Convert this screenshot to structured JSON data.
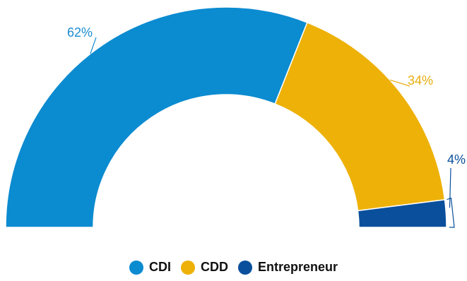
{
  "chart_data": {
    "type": "pie",
    "variant": "half-donut",
    "title": "",
    "legend_position": "bottom-center",
    "series": [
      {
        "name": "CDI",
        "value": 62,
        "label": "62%",
        "color": "#0b8bd0",
        "label_color": "#1a8cd0"
      },
      {
        "name": "CDD",
        "value": 34,
        "label": "34%",
        "color": "#edb108",
        "label_color": "#e8ad10"
      },
      {
        "name": "Entrepreneur",
        "value": 4,
        "label": "4%",
        "color": "#0a4f9c",
        "label_color": "#0a4f9c"
      }
    ]
  }
}
